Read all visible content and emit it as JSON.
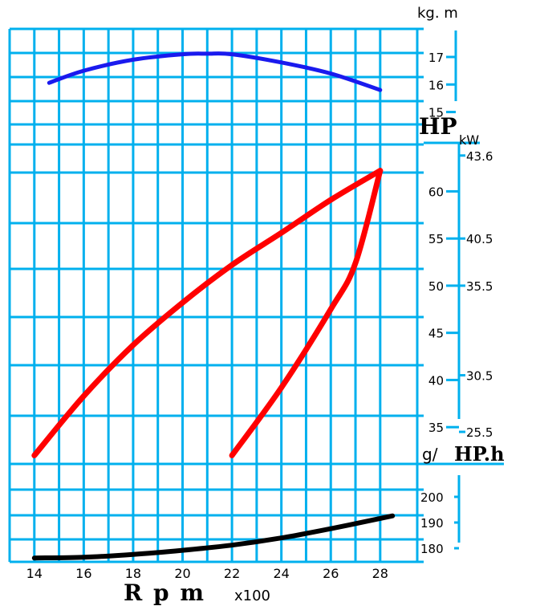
{
  "chart_data": {
    "type": "line",
    "x_axis": {
      "label": "R p m",
      "unit": "x100",
      "ticks": [
        "14",
        "16",
        "18",
        "20",
        "22",
        "24",
        "26",
        "28"
      ],
      "range": [
        13,
        29.5
      ]
    },
    "torque_panel": {
      "unit_label": "kg. m",
      "ticks": [
        "17",
        "16",
        "15"
      ],
      "tick_values": [
        17,
        16,
        15
      ],
      "range": [
        14.55,
        18.02
      ],
      "series": [
        {
          "color": "#1a1aee",
          "x": [
            14.6,
            16,
            18,
            20,
            21,
            22,
            24,
            26,
            28
          ],
          "y": [
            16.06,
            16.5,
            16.9,
            17.1,
            17.12,
            17.1,
            16.8,
            16.4,
            15.8
          ]
        }
      ]
    },
    "power_panel": {
      "hp_label": "HP",
      "kw_label": "kW",
      "hp_ticks": [
        "60",
        "55",
        "50",
        "45",
        "40",
        "35"
      ],
      "hp_tick_values": [
        60,
        55,
        50,
        45,
        40,
        35
      ],
      "kw_ticks": [
        "43.6",
        "40.5",
        "35.5",
        "30.5",
        "25.5"
      ],
      "kw_tick_hp_positions": [
        63.8,
        55,
        50,
        40.5,
        34.5
      ],
      "hp_range": [
        31.1,
        67.1
      ],
      "series": [
        {
          "color": "#ff0000",
          "x": [
            14,
            16,
            18,
            20,
            22,
            24,
            26,
            28
          ],
          "y": [
            32,
            38.3,
            43.7,
            48.2,
            52.2,
            55.6,
            59.1,
            62.2
          ]
        },
        {
          "color": "#ff0000",
          "x": [
            22,
            24,
            26,
            27,
            28
          ],
          "y": [
            32,
            39.2,
            47.5,
            52.4,
            62.2
          ]
        }
      ]
    },
    "consumption_panel": {
      "unit_label": "g/",
      "unit_label_big": "HP.h",
      "ticks": [
        "200",
        "190",
        "180"
      ],
      "tick_values": [
        200,
        190,
        180
      ],
      "range": [
        174.7,
        212.8
      ],
      "series": [
        {
          "color": "#000000",
          "x": [
            14,
            16,
            18,
            20,
            22,
            24,
            26,
            28,
            28.5
          ],
          "y": [
            176.2,
            176.5,
            177.6,
            179.2,
            181.2,
            184,
            187.6,
            191.6,
            192.6
          ]
        }
      ]
    },
    "colors": {
      "grid": "#00b0ee",
      "background": "#ffffff"
    }
  }
}
